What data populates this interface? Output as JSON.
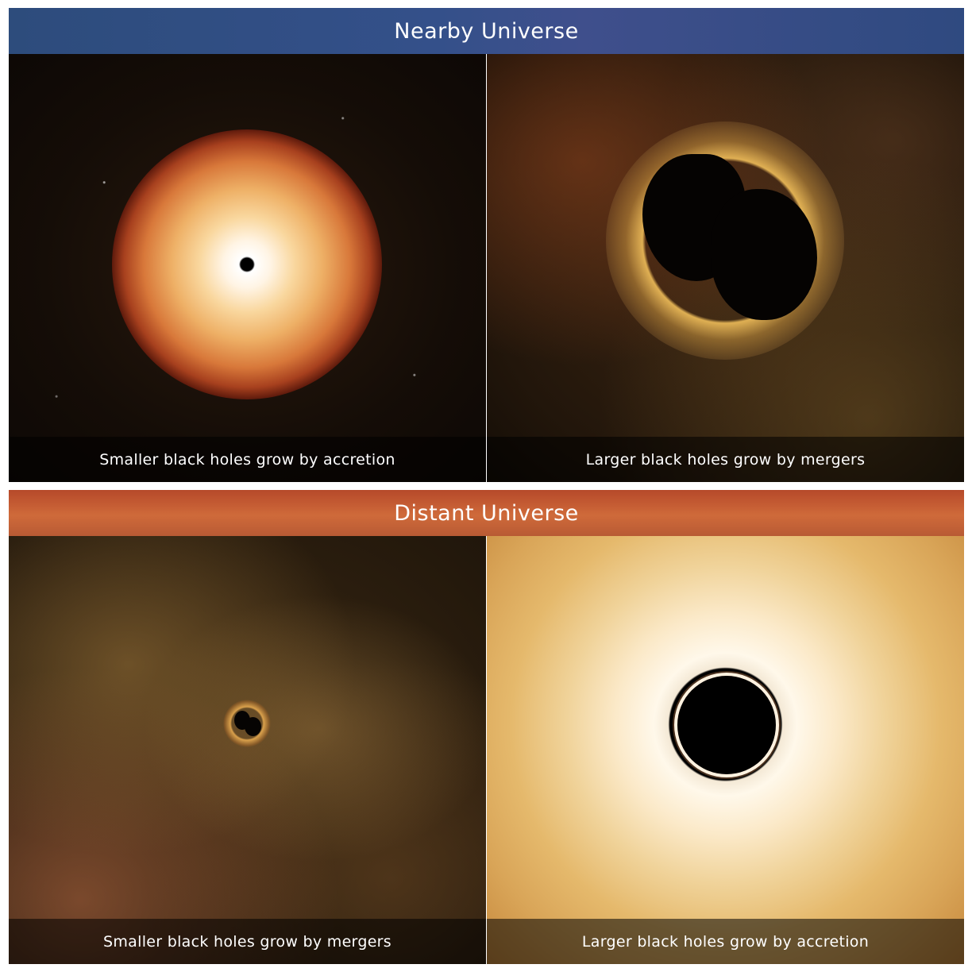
{
  "sections": [
    {
      "title": "Nearby Universe",
      "band_color": "#34508a",
      "panels": [
        {
          "caption": "Smaller black holes grow by accretion"
        },
        {
          "caption": "Larger black holes grow by mergers"
        }
      ]
    },
    {
      "title": "Distant Universe",
      "band_color": "#c75f36",
      "panels": [
        {
          "caption": "Smaller black holes grow by mergers"
        },
        {
          "caption": "Larger black holes grow by accretion"
        }
      ]
    }
  ]
}
